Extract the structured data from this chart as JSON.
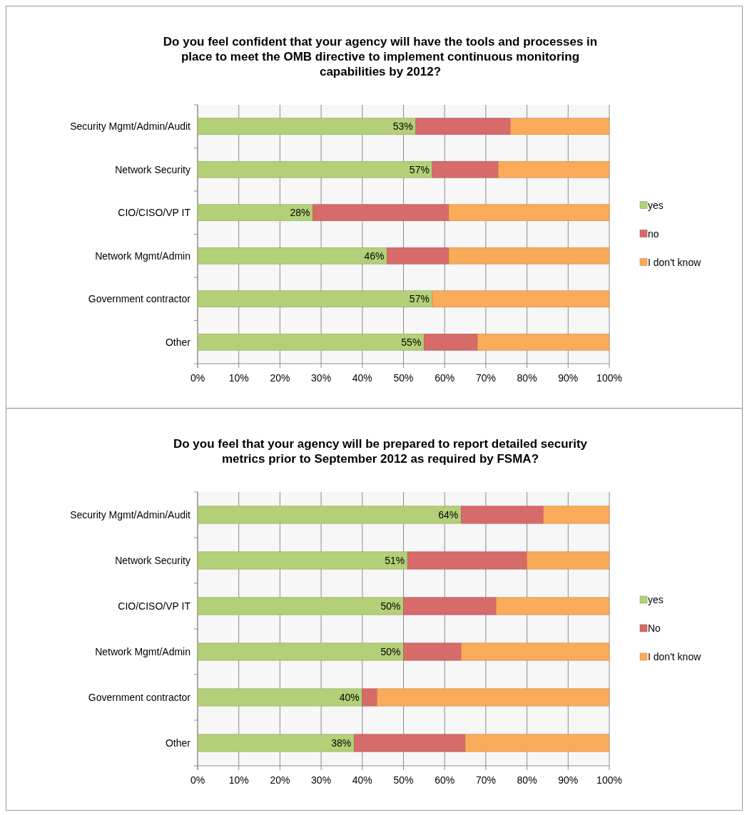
{
  "chart_data": [
    {
      "type": "bar",
      "orientation": "horizontal",
      "stacked": true,
      "title": "Do you feel confident that your agency will have the tools and processes in place to meet the OMB directive to implement continuous monitoring capabilities by 2012?",
      "categories": [
        "Security Mgmt/Admin/Audit",
        "Network Security",
        "CIO/CISO/VP IT",
        "Network Mgmt/Admin",
        "Government contractor",
        "Other"
      ],
      "series": [
        {
          "name": "yes",
          "color": "#b3cf78",
          "values": [
            53,
            57,
            28,
            46,
            57,
            55
          ],
          "value_labels": [
            "53%",
            "57%",
            "28%",
            "46%",
            "57%",
            "55%"
          ]
        },
        {
          "name": "no",
          "color": "#d66b69",
          "values": [
            23,
            16,
            33,
            15,
            0,
            13
          ]
        },
        {
          "name": "I don't know",
          "color": "#f9ab5a",
          "values": [
            24,
            27,
            39,
            39,
            43,
            32
          ]
        }
      ],
      "xlim": [
        0,
        100
      ],
      "xticks": [
        {
          "value": 0,
          "label": "0%"
        },
        {
          "value": 10,
          "label": "10%"
        },
        {
          "value": 20,
          "label": "20%"
        },
        {
          "value": 30,
          "label": "30%"
        },
        {
          "value": 40,
          "label": "40%"
        },
        {
          "value": 50,
          "label": "50%"
        },
        {
          "value": 60,
          "label": "60%"
        },
        {
          "value": 70,
          "label": "70%"
        },
        {
          "value": 80,
          "label": "80%"
        },
        {
          "value": 90,
          "label": "90%"
        },
        {
          "value": 100,
          "label": "100%"
        }
      ],
      "grid": "x",
      "legend": "right"
    },
    {
      "type": "bar",
      "orientation": "horizontal",
      "stacked": true,
      "title": "Do you feel that your agency will be prepared to report detailed security metrics prior to September 2012 as required by FSMA?",
      "categories": [
        "Security Mgmt/Admin/Audit",
        "Network Security",
        "CIO/CISO/VP IT",
        "Network Mgmt/Admin",
        "Government contractor",
        "Other"
      ],
      "series": [
        {
          "name": "yes",
          "color": "#b3cf78",
          "values": [
            64,
            51,
            50,
            50,
            40,
            38
          ],
          "value_labels": [
            "64%",
            "51%",
            "50%",
            "50%",
            "40%",
            "38%"
          ]
        },
        {
          "name": "No",
          "color": "#d66b69",
          "values": [
            20,
            29,
            22.5,
            14,
            3.6,
            27
          ]
        },
        {
          "name": "I don't know",
          "color": "#f9ab5a",
          "values": [
            16,
            20,
            27.5,
            36,
            56.4,
            35
          ]
        }
      ],
      "xlim": [
        0,
        100
      ],
      "xticks": [
        {
          "value": 0,
          "label": "0%"
        },
        {
          "value": 10,
          "label": "10%"
        },
        {
          "value": 20,
          "label": "20%"
        },
        {
          "value": 30,
          "label": "30%"
        },
        {
          "value": 40,
          "label": "40%"
        },
        {
          "value": 50,
          "label": "50%"
        },
        {
          "value": 60,
          "label": "60%"
        },
        {
          "value": 70,
          "label": "70%"
        },
        {
          "value": 80,
          "label": "80%"
        },
        {
          "value": 90,
          "label": "90%"
        },
        {
          "value": 100,
          "label": "100%"
        }
      ],
      "grid": "x",
      "legend": "right"
    }
  ]
}
